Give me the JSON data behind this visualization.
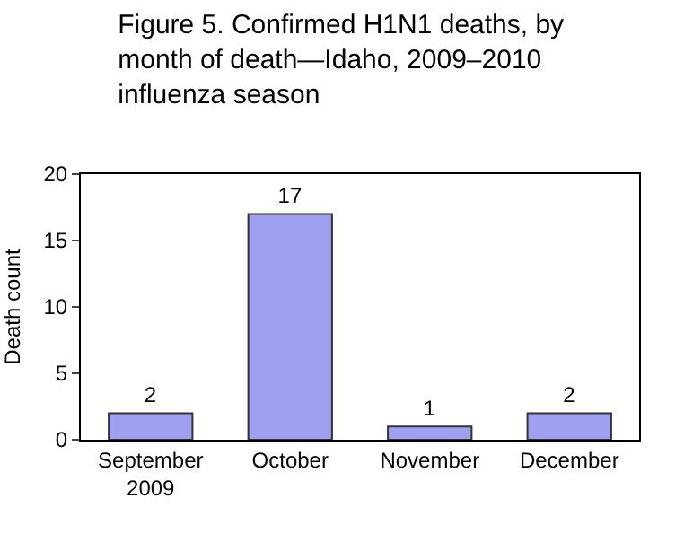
{
  "chart_data": {
    "type": "bar",
    "title": "Figure 5. Confirmed H1N1 deaths, by\nmonth of death—Idaho, 2009–2010\ninfluenza season",
    "ylabel": "Death count",
    "categories": [
      "September\n2009",
      "October",
      "November",
      "December"
    ],
    "values": [
      2,
      17,
      1,
      2
    ],
    "color": "#a0a0f0",
    "ylim": [
      0,
      20
    ],
    "yticks": [
      0,
      5,
      10,
      15,
      20
    ],
    "grid": false,
    "data_labels": true
  }
}
